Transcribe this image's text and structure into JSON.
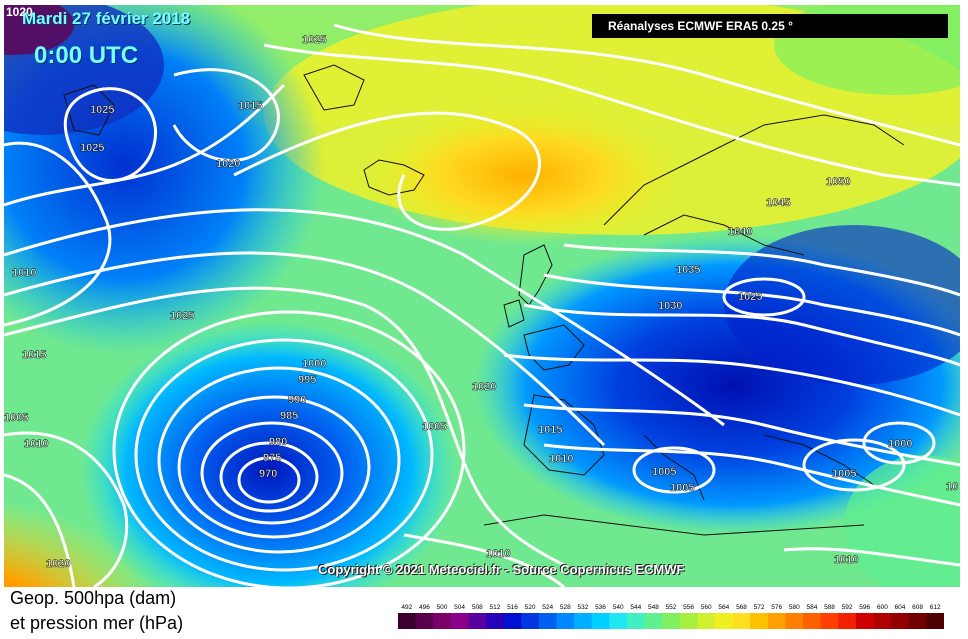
{
  "header": {
    "date": "Mardi 27 février 2018",
    "time": "0:00 UTC",
    "corner_value": "1020",
    "source_banner": "Réanalyses ECMWF ERA5 0.25 °"
  },
  "copyright": "Copyright © 2021 Meteociel.fr - Source Copernicus ECMWF",
  "legend": {
    "title_line1": "Geop. 500hpa (dam)",
    "title_line2": "et pression mer (hPa)",
    "ticks": [
      "492",
      "496",
      "500",
      "504",
      "508",
      "512",
      "516",
      "520",
      "524",
      "528",
      "532",
      "536",
      "540",
      "544",
      "548",
      "552",
      "556",
      "560",
      "564",
      "568",
      "572",
      "576",
      "580",
      "584",
      "588",
      "592",
      "596",
      "600",
      "604",
      "608",
      "612"
    ],
    "colors": [
      "#3a0030",
      "#5a004a",
      "#7a006a",
      "#8a008a",
      "#5a00a0",
      "#2800b8",
      "#0010d0",
      "#0038e0",
      "#0060f0",
      "#0088ff",
      "#00b0ff",
      "#00d0ff",
      "#20e8f0",
      "#40f0c0",
      "#60f090",
      "#80f060",
      "#a8f040",
      "#d0f030",
      "#f0f020",
      "#ffe020",
      "#ffc000",
      "#ffa000",
      "#ff8000",
      "#ff6000",
      "#ff4000",
      "#f02000",
      "#d00000",
      "#b00000",
      "#900000",
      "#700000",
      "#500000"
    ]
  },
  "isobars": {
    "labels": [
      "1025",
      "1015",
      "1025",
      "1025",
      "1020",
      "1010",
      "1025",
      "1015",
      "1005",
      "1010",
      "1000",
      "995",
      "990",
      "985",
      "980",
      "975",
      "970",
      "1005",
      "1020",
      "1015",
      "1010",
      "1005",
      "1005",
      "1000",
      "1005",
      "1010",
      "1010",
      "1020",
      "1050",
      "1045",
      "1040",
      "1035",
      "1030",
      "1025",
      "10"
    ]
  }
}
